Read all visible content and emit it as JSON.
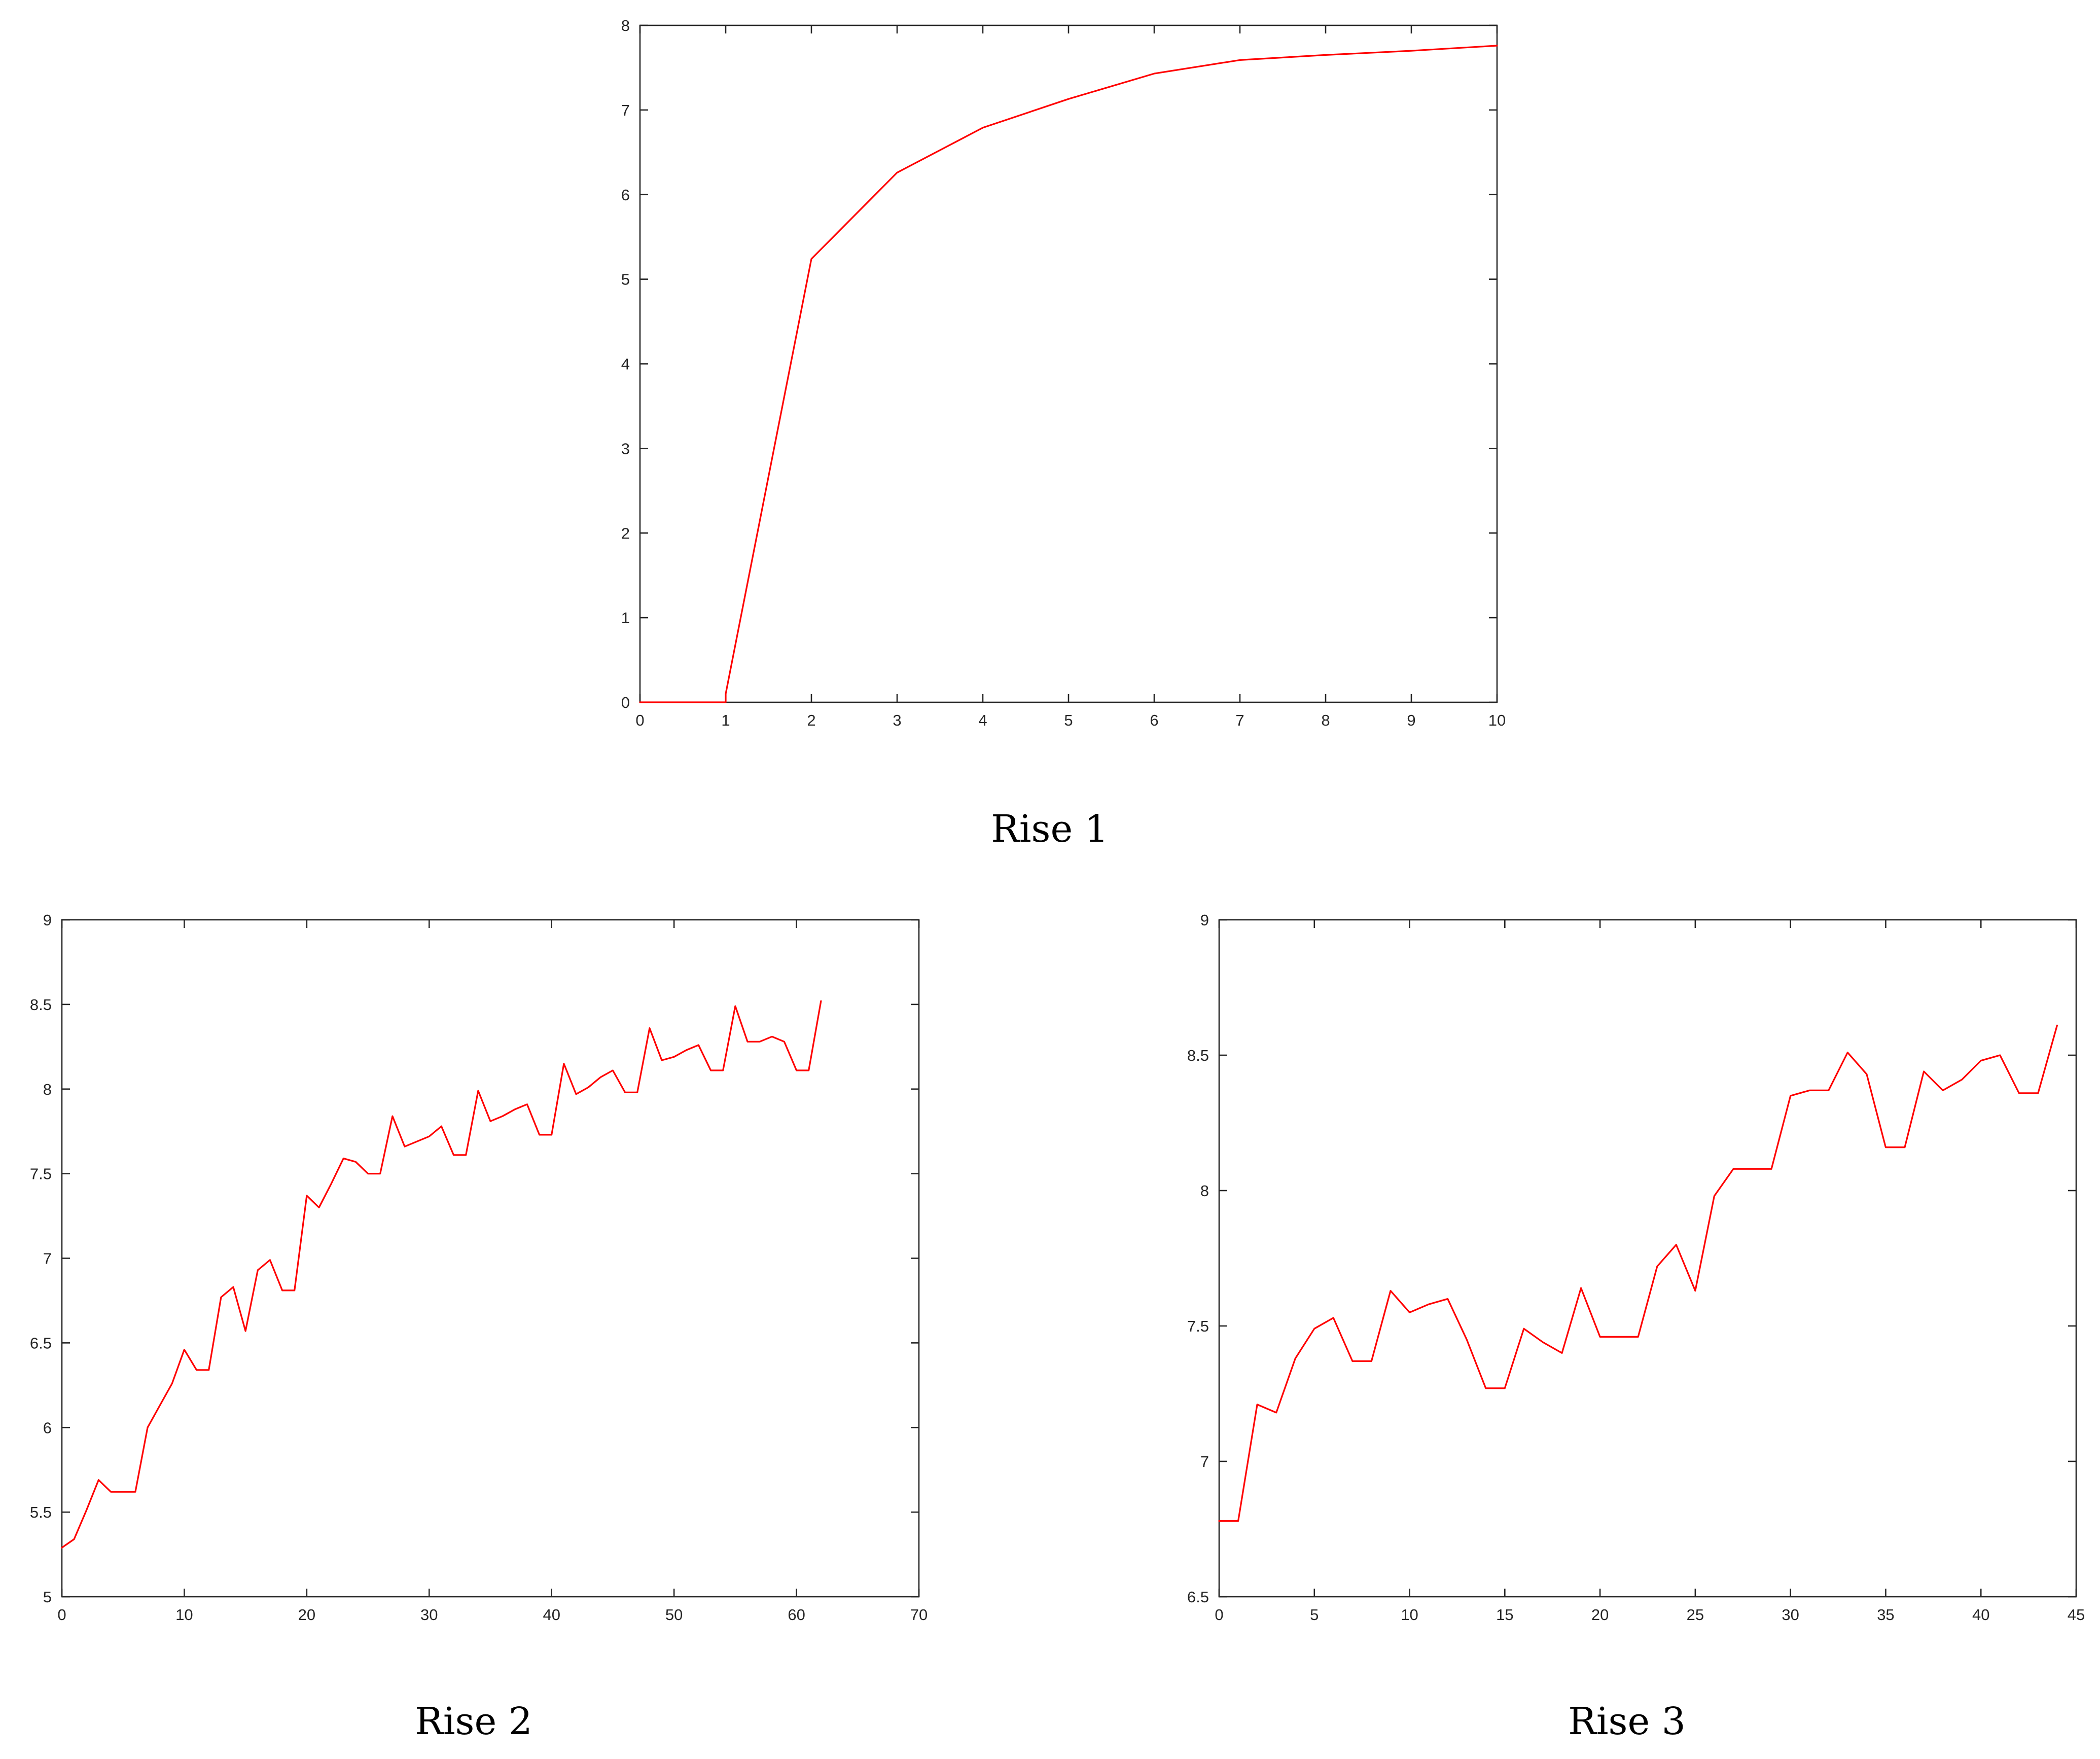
{
  "series_color": "#ff0000",
  "chart_data": [
    {
      "type": "line",
      "title": "",
      "xlabel": "",
      "ylabel": "",
      "caption": "Rise 1",
      "xlim": [
        0,
        10
      ],
      "ylim": [
        0,
        8
      ],
      "xticks": [
        0,
        1,
        2,
        3,
        4,
        5,
        6,
        7,
        8,
        9,
        10
      ],
      "yticks": [
        0,
        1,
        2,
        3,
        4,
        5,
        6,
        7,
        8
      ],
      "grid": false,
      "legend": "none",
      "series": [
        {
          "x": [
            0,
            1,
            1,
            2,
            3,
            4,
            5,
            6,
            7,
            8,
            9,
            10
          ],
          "y": [
            0,
            0,
            0.1,
            5.24,
            6.26,
            6.79,
            7.13,
            7.43,
            7.59,
            7.65,
            7.7,
            7.76
          ]
        }
      ]
    },
    {
      "type": "line",
      "title": "",
      "xlabel": "",
      "ylabel": "",
      "caption": "Rise 2",
      "xlim": [
        0,
        70
      ],
      "ylim": [
        5,
        9
      ],
      "xticks": [
        0,
        10,
        20,
        30,
        40,
        50,
        60,
        70
      ],
      "yticks": [
        5,
        5.5,
        6,
        6.5,
        7,
        7.5,
        8,
        8.5,
        9
      ],
      "grid": false,
      "legend": "none",
      "series": [
        {
          "x": [
            0,
            1,
            2,
            3,
            4,
            5,
            6,
            7,
            8,
            9,
            10,
            11,
            12,
            13,
            14,
            15,
            16,
            17,
            18,
            19,
            20,
            21,
            22,
            23,
            24,
            25,
            26,
            27,
            28,
            29,
            30,
            31,
            32,
            33,
            34,
            35,
            36,
            37,
            38,
            39,
            40,
            41,
            42,
            43,
            44,
            45,
            46,
            47,
            48,
            49,
            50,
            51,
            52,
            53,
            54,
            55,
            56,
            57,
            58,
            59,
            60,
            61,
            62
          ],
          "y": [
            5.29,
            5.34,
            5.51,
            5.69,
            5.62,
            5.62,
            5.62,
            6.0,
            6.13,
            6.26,
            6.46,
            6.34,
            6.34,
            6.77,
            6.83,
            6.57,
            6.93,
            6.99,
            6.81,
            6.81,
            7.37,
            7.3,
            7.44,
            7.59,
            7.57,
            7.5,
            7.5,
            7.84,
            7.66,
            7.69,
            7.72,
            7.78,
            7.61,
            7.61,
            7.99,
            7.81,
            7.84,
            7.88,
            7.91,
            7.73,
            7.73,
            8.15,
            7.97,
            8.01,
            8.07,
            8.11,
            7.98,
            7.98,
            8.36,
            8.17,
            8.19,
            8.23,
            8.26,
            8.11,
            8.11,
            8.49,
            8.28,
            8.28,
            8.31,
            8.28,
            8.11,
            8.11,
            8.52
          ]
        }
      ]
    },
    {
      "type": "line",
      "title": "",
      "xlabel": "",
      "ylabel": "",
      "caption": "Rise 3",
      "xlim": [
        0,
        45
      ],
      "ylim": [
        6.5,
        9
      ],
      "xticks": [
        0,
        5,
        10,
        15,
        20,
        25,
        30,
        35,
        40,
        45
      ],
      "yticks": [
        6.5,
        7,
        7.5,
        8,
        8.5,
        9
      ],
      "grid": false,
      "legend": "none",
      "series": [
        {
          "x": [
            0,
            1,
            2,
            3,
            4,
            5,
            6,
            7,
            8,
            9,
            10,
            11,
            12,
            13,
            14,
            15,
            16,
            17,
            18,
            19,
            20,
            21,
            22,
            23,
            24,
            25,
            26,
            27,
            28,
            29,
            30,
            31,
            32,
            33,
            34,
            35,
            36,
            37,
            38,
            39,
            40,
            41,
            42,
            43,
            44
          ],
          "y": [
            6.78,
            6.78,
            7.21,
            7.18,
            7.38,
            7.49,
            7.53,
            7.37,
            7.37,
            7.63,
            7.55,
            7.58,
            7.6,
            7.45,
            7.27,
            7.27,
            7.49,
            7.44,
            7.4,
            7.64,
            7.46,
            7.46,
            7.46,
            7.72,
            7.8,
            7.63,
            7.98,
            8.08,
            8.08,
            8.08,
            8.35,
            8.37,
            8.37,
            8.51,
            8.43,
            8.16,
            8.16,
            8.44,
            8.37,
            8.41,
            8.48,
            8.5,
            8.36,
            8.36,
            8.61
          ]
        }
      ]
    }
  ]
}
